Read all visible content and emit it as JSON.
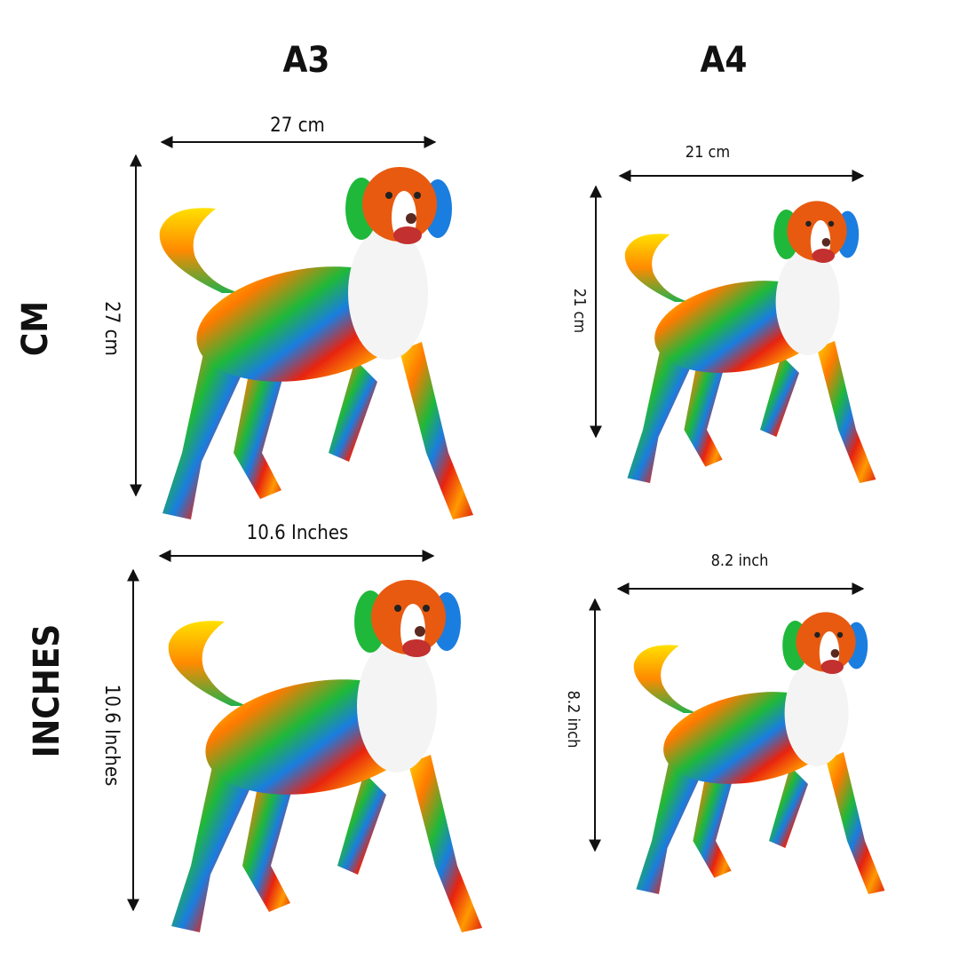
{
  "columns": [
    "A3",
    "A4"
  ],
  "rows": [
    "CM",
    "INCHES"
  ],
  "panels": [
    {
      "width_label": "27 cm",
      "height_label": "27 cm"
    },
    {
      "width_label": "21 cm",
      "height_label": "21 cm"
    },
    {
      "width_label": "10.6 Inches",
      "height_label": "10.6 Inches"
    },
    {
      "width_label": "8.2 inch",
      "height_label": "8.2 inch"
    }
  ]
}
